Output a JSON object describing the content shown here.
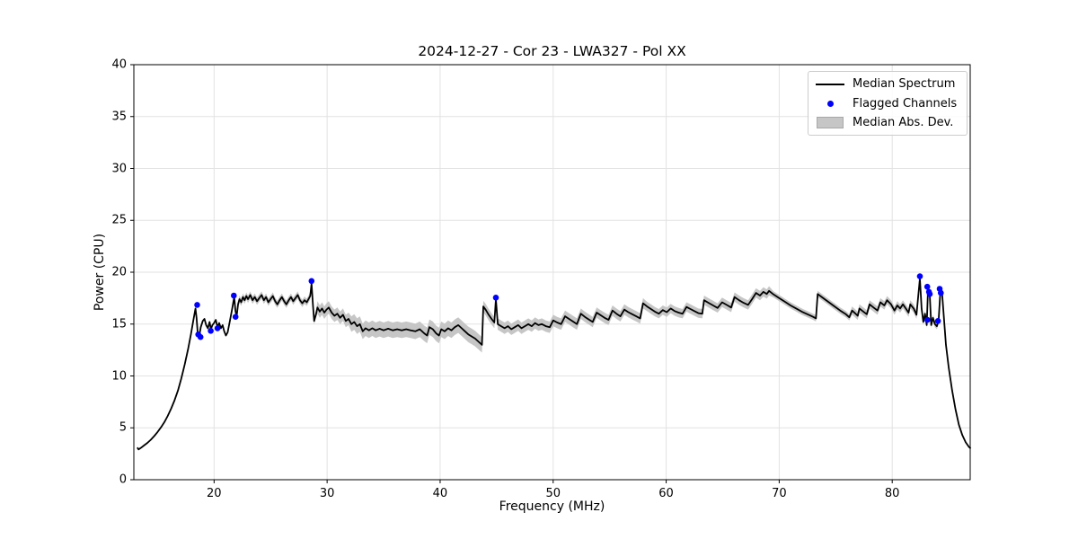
{
  "figure": {
    "title": "2024-12-27 - Cor 23 - LWA327 - Pol XX"
  },
  "axes": {
    "xlabel": "Frequency (MHz)",
    "ylabel": "Power (CPU)"
  },
  "legend": {
    "items": [
      {
        "label": "Median Spectrum",
        "marker": "line"
      },
      {
        "label": "Flagged Channels",
        "marker": "dot"
      },
      {
        "label": "Median Abs. Dev.",
        "marker": "patch"
      }
    ]
  },
  "chart_data": {
    "type": "line",
    "title": "2024-12-27 - Cor 23 - LWA327 - Pol XX",
    "xlabel": "Frequency (MHz)",
    "ylabel": "Power (CPU)",
    "xlim": [
      12.9,
      86.9
    ],
    "ylim": [
      0,
      40
    ],
    "xticks": [
      20,
      30,
      40,
      50,
      60,
      70,
      80
    ],
    "yticks": [
      0,
      5,
      10,
      15,
      20,
      25,
      30,
      35,
      40
    ],
    "grid": true,
    "legend_position": "upper right",
    "colors": {
      "median_line": "#000000",
      "flagged": "#0000ff",
      "band": "#c6c6c6",
      "gridline": "#e2e2e2",
      "spine": "#000000"
    },
    "series": [
      {
        "name": "Median Spectrum",
        "type": "line",
        "color": "#000000",
        "points": [
          [
            13.2,
            3.1
          ],
          [
            13.32,
            2.92
          ],
          [
            13.5,
            3.05
          ],
          [
            13.8,
            3.3
          ],
          [
            14.1,
            3.55
          ],
          [
            14.4,
            3.85
          ],
          [
            14.7,
            4.2
          ],
          [
            15.0,
            4.6
          ],
          [
            15.3,
            5.05
          ],
          [
            15.6,
            5.55
          ],
          [
            15.9,
            6.15
          ],
          [
            16.2,
            6.85
          ],
          [
            16.5,
            7.65
          ],
          [
            16.8,
            8.6
          ],
          [
            17.1,
            9.75
          ],
          [
            17.4,
            11.1
          ],
          [
            17.7,
            12.6
          ],
          [
            17.95,
            14.0
          ],
          [
            18.15,
            15.3
          ],
          [
            18.35,
            16.5
          ],
          [
            18.45,
            15.6
          ],
          [
            18.55,
            14.1
          ],
          [
            18.68,
            13.8
          ],
          [
            18.82,
            14.7
          ],
          [
            19.0,
            15.3
          ],
          [
            19.15,
            15.5
          ],
          [
            19.3,
            14.9
          ],
          [
            19.45,
            14.6
          ],
          [
            19.6,
            15.2
          ],
          [
            19.72,
            14.5
          ],
          [
            19.85,
            14.9
          ],
          [
            20.0,
            15.1
          ],
          [
            20.15,
            15.4
          ],
          [
            20.3,
            14.7
          ],
          [
            20.45,
            15.1
          ],
          [
            20.6,
            14.6
          ],
          [
            20.75,
            14.9
          ],
          [
            20.9,
            14.3
          ],
          [
            21.05,
            13.9
          ],
          [
            21.2,
            14.2
          ],
          [
            21.4,
            15.3
          ],
          [
            21.6,
            16.5
          ],
          [
            21.78,
            17.6
          ],
          [
            21.9,
            16.2
          ],
          [
            22.0,
            15.8
          ],
          [
            22.12,
            16.9
          ],
          [
            22.25,
            17.4
          ],
          [
            22.4,
            17.1
          ],
          [
            22.55,
            17.6
          ],
          [
            22.7,
            17.3
          ],
          [
            22.85,
            17.7
          ],
          [
            23.0,
            17.4
          ],
          [
            23.2,
            17.8
          ],
          [
            23.4,
            17.3
          ],
          [
            23.6,
            17.6
          ],
          [
            23.8,
            17.2
          ],
          [
            24.0,
            17.5
          ],
          [
            24.2,
            17.8
          ],
          [
            24.4,
            17.3
          ],
          [
            24.6,
            17.6
          ],
          [
            24.8,
            17.1
          ],
          [
            25.0,
            17.4
          ],
          [
            25.2,
            17.7
          ],
          [
            25.4,
            17.2
          ],
          [
            25.6,
            16.9
          ],
          [
            25.8,
            17.3
          ],
          [
            26.0,
            17.6
          ],
          [
            26.2,
            17.2
          ],
          [
            26.4,
            16.9
          ],
          [
            26.6,
            17.3
          ],
          [
            26.8,
            17.6
          ],
          [
            27.0,
            17.2
          ],
          [
            27.2,
            17.5
          ],
          [
            27.4,
            17.8
          ],
          [
            27.6,
            17.3
          ],
          [
            27.8,
            17.0
          ],
          [
            28.0,
            17.3
          ],
          [
            28.2,
            17.1
          ],
          [
            28.35,
            17.4
          ],
          [
            28.5,
            17.7
          ],
          [
            28.62,
            18.9
          ],
          [
            28.75,
            16.8
          ],
          [
            28.85,
            15.3
          ],
          [
            29.0,
            15.9
          ],
          [
            29.15,
            16.6
          ],
          [
            29.35,
            16.2
          ],
          [
            29.55,
            16.5
          ],
          [
            29.75,
            16.1
          ],
          [
            29.95,
            16.4
          ],
          [
            30.15,
            16.6
          ],
          [
            30.4,
            16.1
          ],
          [
            30.65,
            15.8
          ],
          [
            30.9,
            16.0
          ],
          [
            31.15,
            15.6
          ],
          [
            31.4,
            15.9
          ],
          [
            31.65,
            15.3
          ],
          [
            31.9,
            15.5
          ],
          [
            32.15,
            15.0
          ],
          [
            32.4,
            15.2
          ],
          [
            32.65,
            14.8
          ],
          [
            32.9,
            15.0
          ],
          [
            33.15,
            14.3
          ],
          [
            33.4,
            14.6
          ],
          [
            33.7,
            14.4
          ],
          [
            34.0,
            14.6
          ],
          [
            34.3,
            14.4
          ],
          [
            34.65,
            14.55
          ],
          [
            35.0,
            14.4
          ],
          [
            35.4,
            14.55
          ],
          [
            35.8,
            14.4
          ],
          [
            36.2,
            14.5
          ],
          [
            36.6,
            14.4
          ],
          [
            37.0,
            14.5
          ],
          [
            37.4,
            14.4
          ],
          [
            37.8,
            14.3
          ],
          [
            38.2,
            14.5
          ],
          [
            38.6,
            14.1
          ],
          [
            38.85,
            13.9
          ],
          [
            39.05,
            14.7
          ],
          [
            39.35,
            14.5
          ],
          [
            39.65,
            14.1
          ],
          [
            39.9,
            13.9
          ],
          [
            40.1,
            14.5
          ],
          [
            40.4,
            14.3
          ],
          [
            40.7,
            14.6
          ],
          [
            41.0,
            14.4
          ],
          [
            41.3,
            14.7
          ],
          [
            41.6,
            14.9
          ],
          [
            41.9,
            14.6
          ],
          [
            42.2,
            14.3
          ],
          [
            42.5,
            14.0
          ],
          [
            42.8,
            13.8
          ],
          [
            43.1,
            13.6
          ],
          [
            43.4,
            13.3
          ],
          [
            43.7,
            13.0
          ],
          [
            43.82,
            16.7
          ],
          [
            44.05,
            16.35
          ],
          [
            44.3,
            15.9
          ],
          [
            44.55,
            15.5
          ],
          [
            44.8,
            15.15
          ],
          [
            44.93,
            17.4
          ],
          [
            45.1,
            15.0
          ],
          [
            45.4,
            14.8
          ],
          [
            45.7,
            14.6
          ],
          [
            46.0,
            14.8
          ],
          [
            46.3,
            14.5
          ],
          [
            46.6,
            14.7
          ],
          [
            46.9,
            14.9
          ],
          [
            47.2,
            14.6
          ],
          [
            47.5,
            14.8
          ],
          [
            47.8,
            15.0
          ],
          [
            48.1,
            14.8
          ],
          [
            48.4,
            15.1
          ],
          [
            48.7,
            14.9
          ],
          [
            49.0,
            15.0
          ],
          [
            49.35,
            14.8
          ],
          [
            49.7,
            14.7
          ],
          [
            50.0,
            15.35
          ],
          [
            50.35,
            15.15
          ],
          [
            50.7,
            15.0
          ],
          [
            51.05,
            15.75
          ],
          [
            51.4,
            15.5
          ],
          [
            51.75,
            15.25
          ],
          [
            52.1,
            15.0
          ],
          [
            52.45,
            16.0
          ],
          [
            52.8,
            15.7
          ],
          [
            53.15,
            15.45
          ],
          [
            53.5,
            15.2
          ],
          [
            53.85,
            16.1
          ],
          [
            54.2,
            15.85
          ],
          [
            54.55,
            15.6
          ],
          [
            54.9,
            15.4
          ],
          [
            55.25,
            16.3
          ],
          [
            55.6,
            16.0
          ],
          [
            55.95,
            15.75
          ],
          [
            56.3,
            16.4
          ],
          [
            56.65,
            16.15
          ],
          [
            57.0,
            15.95
          ],
          [
            57.35,
            15.75
          ],
          [
            57.7,
            15.55
          ],
          [
            57.95,
            17.0
          ],
          [
            58.3,
            16.7
          ],
          [
            58.65,
            16.45
          ],
          [
            59.0,
            16.2
          ],
          [
            59.35,
            16.0
          ],
          [
            59.7,
            16.35
          ],
          [
            60.05,
            16.15
          ],
          [
            60.4,
            16.5
          ],
          [
            60.75,
            16.25
          ],
          [
            61.1,
            16.1
          ],
          [
            61.45,
            16.0
          ],
          [
            61.8,
            16.65
          ],
          [
            62.15,
            16.45
          ],
          [
            62.5,
            16.25
          ],
          [
            62.85,
            16.05
          ],
          [
            63.2,
            16.0
          ],
          [
            63.35,
            17.3
          ],
          [
            63.75,
            17.05
          ],
          [
            64.15,
            16.8
          ],
          [
            64.55,
            16.55
          ],
          [
            64.95,
            17.1
          ],
          [
            65.35,
            16.85
          ],
          [
            65.75,
            16.6
          ],
          [
            66.05,
            17.6
          ],
          [
            66.45,
            17.3
          ],
          [
            66.85,
            17.05
          ],
          [
            67.25,
            16.85
          ],
          [
            67.6,
            17.4
          ],
          [
            67.95,
            18.0
          ],
          [
            68.3,
            17.75
          ],
          [
            68.6,
            18.1
          ],
          [
            68.9,
            17.9
          ],
          [
            69.1,
            18.2
          ],
          [
            69.5,
            17.85
          ],
          [
            70.0,
            17.5
          ],
          [
            70.5,
            17.15
          ],
          [
            71.0,
            16.8
          ],
          [
            71.5,
            16.5
          ],
          [
            72.0,
            16.2
          ],
          [
            72.5,
            15.95
          ],
          [
            73.0,
            15.7
          ],
          [
            73.25,
            15.55
          ],
          [
            73.4,
            17.9
          ],
          [
            73.9,
            17.5
          ],
          [
            74.4,
            17.1
          ],
          [
            74.9,
            16.7
          ],
          [
            75.4,
            16.3
          ],
          [
            75.9,
            15.95
          ],
          [
            76.2,
            15.65
          ],
          [
            76.45,
            16.3
          ],
          [
            76.7,
            16.05
          ],
          [
            76.95,
            15.8
          ],
          [
            77.1,
            16.5
          ],
          [
            77.45,
            16.2
          ],
          [
            77.75,
            15.95
          ],
          [
            78.0,
            16.9
          ],
          [
            78.35,
            16.6
          ],
          [
            78.7,
            16.3
          ],
          [
            78.95,
            17.1
          ],
          [
            79.3,
            16.8
          ],
          [
            79.55,
            17.3
          ],
          [
            79.9,
            16.9
          ],
          [
            80.2,
            16.3
          ],
          [
            80.45,
            16.8
          ],
          [
            80.7,
            16.5
          ],
          [
            80.95,
            16.9
          ],
          [
            81.2,
            16.5
          ],
          [
            81.45,
            16.1
          ],
          [
            81.6,
            16.9
          ],
          [
            81.9,
            16.5
          ],
          [
            82.15,
            15.9
          ],
          [
            82.45,
            19.4
          ],
          [
            82.6,
            16.5
          ],
          [
            82.75,
            15.2
          ],
          [
            82.9,
            16.0
          ],
          [
            83.05,
            14.9
          ],
          [
            83.17,
            18.5
          ],
          [
            83.32,
            17.8
          ],
          [
            83.45,
            14.9
          ],
          [
            83.6,
            15.6
          ],
          [
            83.78,
            15.0
          ],
          [
            83.95,
            14.8
          ],
          [
            84.1,
            15.3
          ],
          [
            84.25,
            18.0
          ],
          [
            84.4,
            18.2
          ],
          [
            84.55,
            16.0
          ],
          [
            84.75,
            13.0
          ],
          [
            85.0,
            10.8
          ],
          [
            85.3,
            8.6
          ],
          [
            85.6,
            6.8
          ],
          [
            85.9,
            5.3
          ],
          [
            86.2,
            4.3
          ],
          [
            86.5,
            3.6
          ],
          [
            86.8,
            3.15
          ],
          [
            86.95,
            3.0
          ]
        ]
      },
      {
        "name": "Flagged Channels",
        "type": "scatter",
        "color": "#0000ff",
        "points": [
          [
            18.5,
            16.85
          ],
          [
            18.6,
            14.0
          ],
          [
            18.8,
            13.75
          ],
          [
            19.7,
            14.35
          ],
          [
            20.3,
            14.6
          ],
          [
            21.75,
            17.75
          ],
          [
            21.9,
            15.7
          ],
          [
            28.62,
            19.15
          ],
          [
            44.93,
            17.55
          ],
          [
            82.45,
            19.6
          ],
          [
            83.1,
            18.6
          ],
          [
            83.25,
            18.1
          ],
          [
            83.32,
            17.9
          ],
          [
            84.2,
            18.4
          ],
          [
            84.3,
            18.0
          ],
          [
            83.12,
            15.4
          ],
          [
            84.05,
            15.3
          ]
        ]
      },
      {
        "name": "Median Abs. Dev.",
        "type": "band",
        "color": "#c6c6c6",
        "around": "Median Spectrum",
        "mad_segments": [
          [
            21.95,
            29.0,
            0.35
          ],
          [
            29.0,
            32.0,
            0.6
          ],
          [
            32.0,
            43.8,
            0.75
          ],
          [
            43.8,
            52.1,
            0.55
          ],
          [
            52.1,
            58.0,
            0.5
          ],
          [
            58.0,
            69.3,
            0.45
          ],
          [
            69.3,
            76.3,
            0.3
          ],
          [
            76.3,
            82.3,
            0.4
          ],
          [
            82.3,
            84.5,
            0.3
          ]
        ]
      }
    ]
  }
}
